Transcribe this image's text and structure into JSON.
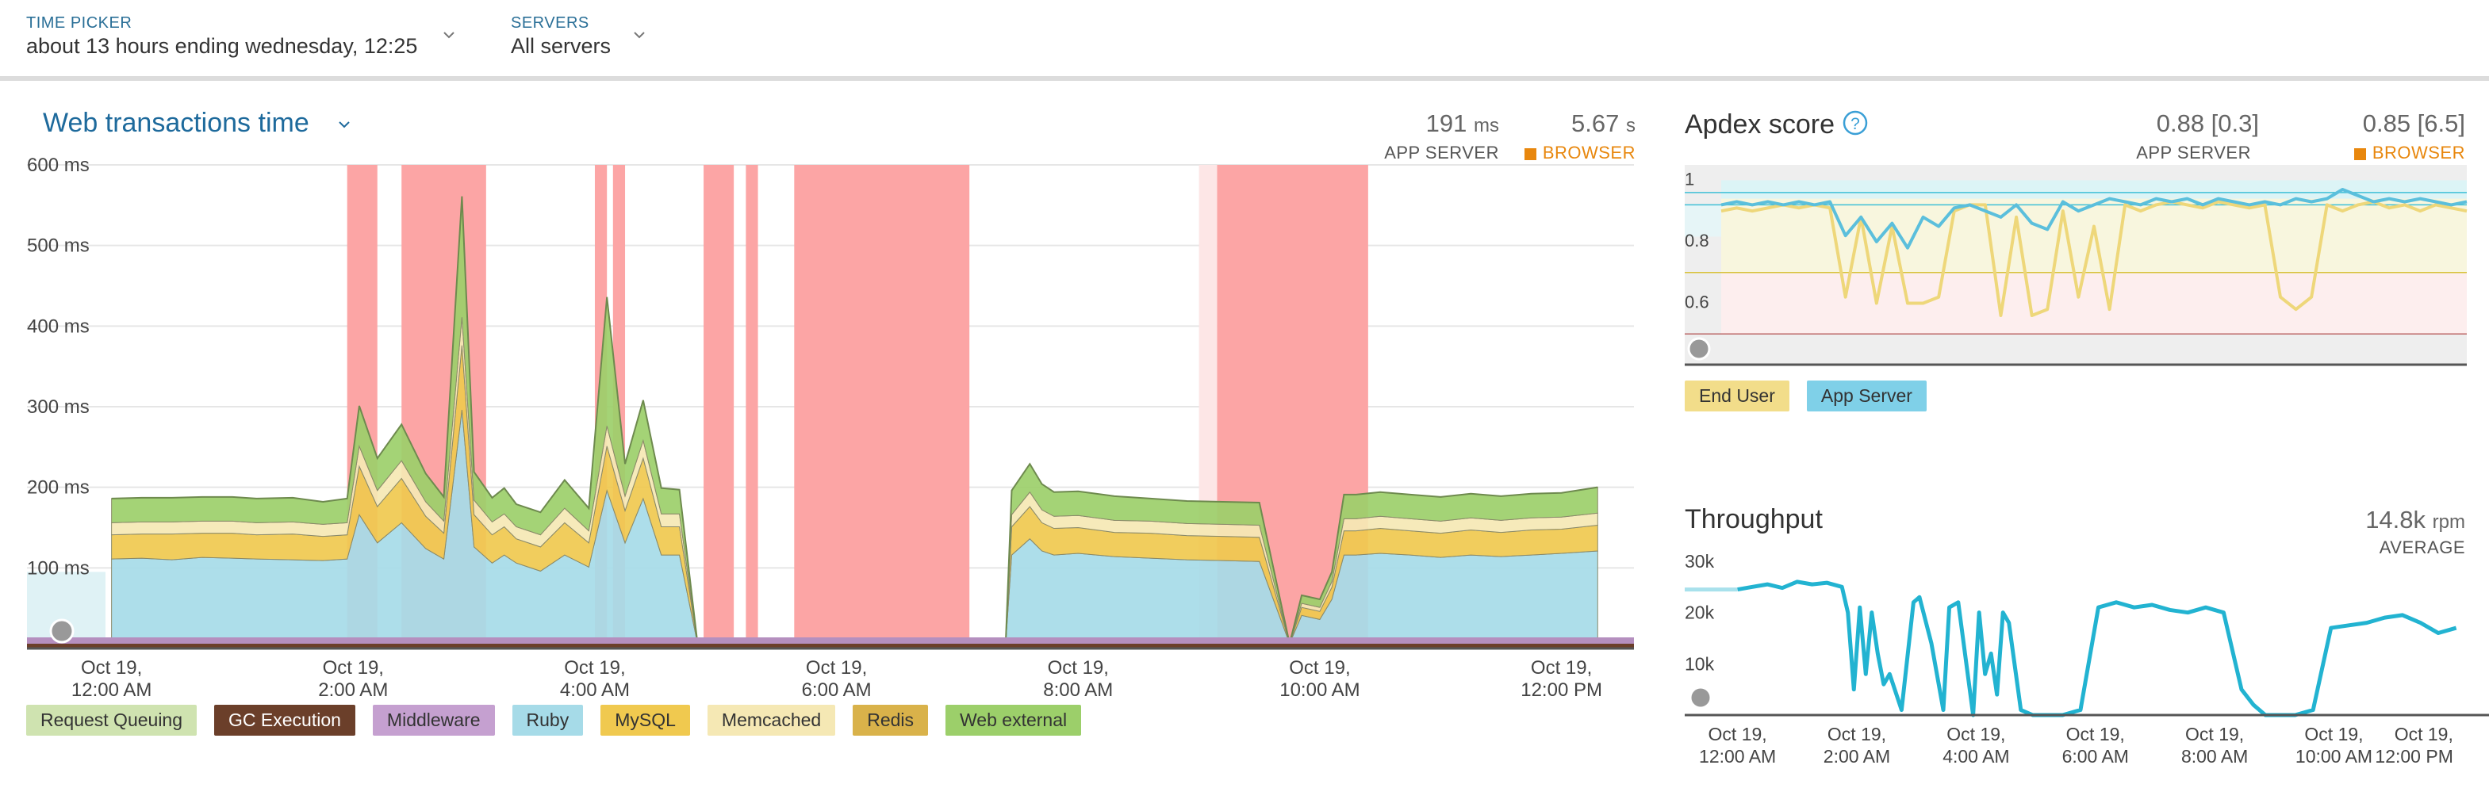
{
  "time_picker": {
    "label": "TIME PICKER",
    "value": "about 13 hours ending wednesday, 12:25"
  },
  "servers": {
    "label": "SERVERS",
    "value": "All servers"
  },
  "web_transactions": {
    "title": "Web transactions time",
    "app_server_value": "191",
    "app_server_unit": "ms",
    "app_server_label": "APP SERVER",
    "browser_value": "5.67",
    "browser_unit": "s",
    "browser_label": "BROWSER",
    "legend": [
      {
        "label": "Request Queuing",
        "color": "#cfe3b0"
      },
      {
        "label": "GC Execution",
        "color": "#6b3f2a"
      },
      {
        "label": "Middleware",
        "color": "#c5a0d0"
      },
      {
        "label": "Ruby",
        "color": "#a6dbe8"
      },
      {
        "label": "MySQL",
        "color": "#f0c94f"
      },
      {
        "label": "Memcached",
        "color": "#f5e8b4"
      },
      {
        "label": "Redis",
        "color": "#d9b24a"
      },
      {
        "label": "Web external",
        "color": "#9ccf6a"
      }
    ]
  },
  "apdex": {
    "title": "Apdex score",
    "help_icon": "question-circle-icon",
    "app_server_value": "0.88 [0.3]",
    "app_server_label": "APP SERVER",
    "browser_value": "0.85 [6.5]",
    "browser_label": "BROWSER",
    "legend": [
      {
        "label": "End User",
        "color": "#f2dd8a"
      },
      {
        "label": "App Server",
        "color": "#7fd0e8"
      }
    ]
  },
  "throughput": {
    "title": "Throughput",
    "value": "14.8k",
    "unit": "rpm",
    "label": "AVERAGE"
  },
  "colors": {
    "accent": "#1e6a9c",
    "browser": "#e8870d",
    "incident": "#fca5a5",
    "line": "#22b3d1"
  },
  "chart_data": [
    {
      "type": "area",
      "title": "Web transactions time",
      "ylabel": "",
      "yticks": [
        "600 ms",
        "500 ms",
        "400 ms",
        "300 ms",
        "200 ms",
        "100 ms"
      ],
      "ylim": [
        0,
        600
      ],
      "x": [
        0,
        0.25,
        0.5,
        0.75,
        1,
        1.2,
        1.5,
        1.75,
        1.95,
        2.05,
        2.2,
        2.4,
        2.6,
        2.75,
        2.9,
        3.0,
        3.15,
        3.25,
        3.35,
        3.55,
        3.75,
        3.95,
        4.1,
        4.25,
        4.4,
        4.55,
        4.7,
        4.85,
        5.0,
        5.1,
        5.2,
        5.35,
        5.5,
        5.7,
        5.85,
        5.9,
        6.0,
        6.5,
        7.0,
        7.4,
        7.45,
        7.6,
        7.7,
        7.8,
        8.0,
        8.3,
        8.6,
        8.9,
        9.2,
        9.5,
        9.75,
        9.85,
        10.0,
        10.1,
        10.2,
        10.3,
        10.5,
        10.75,
        11.0,
        11.25,
        11.5,
        11.75,
        12.0,
        12.3
      ],
      "series": [
        {
          "name": "Ruby",
          "values": [
            105,
            106,
            104,
            107,
            106,
            105,
            104,
            103,
            105,
            160,
            125,
            150,
            118,
            105,
            290,
            120,
            100,
            110,
            100,
            90,
            110,
            95,
            190,
            125,
            180,
            110,
            110,
            0,
            0,
            0,
            0,
            0,
            0,
            0,
            0,
            0,
            0,
            0,
            0,
            0,
            110,
            130,
            115,
            110,
            112,
            108,
            106,
            104,
            103,
            102,
            0,
            35,
            30,
            55,
            110,
            110,
            112,
            110,
            107,
            110,
            108,
            110,
            112,
            115
          ]
        },
        {
          "name": "MySQL",
          "values": [
            30,
            30,
            32,
            30,
            31,
            30,
            32,
            30,
            30,
            60,
            45,
            55,
            40,
            32,
            80,
            40,
            35,
            35,
            30,
            30,
            40,
            30,
            55,
            40,
            50,
            35,
            35,
            0,
            0,
            0,
            0,
            0,
            0,
            0,
            0,
            0,
            0,
            0,
            0,
            0,
            35,
            40,
            35,
            33,
            32,
            30,
            31,
            30,
            30,
            30,
            0,
            10,
            10,
            15,
            30,
            30,
            31,
            30,
            30,
            31,
            30,
            31,
            30,
            32
          ]
        },
        {
          "name": "Memcached",
          "values": [
            15,
            15,
            15,
            15,
            15,
            15,
            15,
            15,
            15,
            25,
            20,
            22,
            18,
            15,
            35,
            18,
            16,
            16,
            15,
            15,
            18,
            15,
            25,
            18,
            22,
            16,
            16,
            0,
            0,
            0,
            0,
            0,
            0,
            0,
            0,
            0,
            0,
            0,
            0,
            0,
            15,
            18,
            16,
            15,
            15,
            15,
            15,
            15,
            15,
            15,
            0,
            5,
            5,
            7,
            15,
            15,
            15,
            15,
            15,
            15,
            15,
            15,
            15,
            15
          ]
        },
        {
          "name": "Web external",
          "values": [
            30,
            30,
            30,
            30,
            30,
            30,
            30,
            28,
            30,
            50,
            40,
            45,
            35,
            30,
            150,
            35,
            30,
            32,
            28,
            28,
            35,
            28,
            160,
            40,
            50,
            32,
            30,
            0,
            0,
            0,
            0,
            0,
            0,
            0,
            0,
            0,
            0,
            0,
            0,
            0,
            30,
            35,
            32,
            30,
            30,
            30,
            28,
            28,
            28,
            28,
            0,
            10,
            10,
            12,
            30,
            30,
            30,
            30,
            30,
            30,
            30,
            30,
            30,
            32
          ]
        }
      ],
      "xticks": [
        "Oct 19,\n12:00 AM",
        "Oct 19,\n2:00 AM",
        "Oct 19,\n4:00 AM",
        "Oct 19,\n6:00 AM",
        "Oct 19,\n8:00 AM",
        "Oct 19,\n10:00 AM",
        "Oct 19,\n12:00 PM"
      ],
      "xtick_hours": [
        0,
        2,
        4,
        6,
        8,
        10,
        12
      ],
      "xlim": [
        -0.7,
        12.6
      ],
      "incidents": [
        [
          1.95,
          2.2
        ],
        [
          2.4,
          3.1
        ],
        [
          4.0,
          4.1
        ],
        [
          4.15,
          4.25
        ],
        [
          4.9,
          5.15
        ],
        [
          5.25,
          5.35
        ],
        [
          5.65,
          7.1
        ],
        [
          9.0,
          9.15
        ],
        [
          9.15,
          10.4
        ]
      ]
    },
    {
      "type": "line",
      "title": "Apdex score",
      "yticks": [
        "1",
        "0.8",
        "0.6"
      ],
      "ylim": [
        0.4,
        1.05
      ],
      "series": [
        {
          "name": "End User",
          "values": [
            0.9,
            0.91,
            0.9,
            0.91,
            0.92,
            0.91,
            0.92,
            0.91,
            0.62,
            0.88,
            0.6,
            0.85,
            0.6,
            0.6,
            0.62,
            0.9,
            0.92,
            0.92,
            0.56,
            0.88,
            0.56,
            0.58,
            0.9,
            0.62,
            0.85,
            0.58,
            0.92,
            0.9,
            0.92,
            0.93,
            0.92,
            0.91,
            0.93,
            0.92,
            0.91,
            0.92,
            0.62,
            0.58,
            0.62,
            0.92,
            0.9,
            0.92,
            0.93,
            0.91,
            0.92,
            0.9,
            0.92,
            0.91,
            0.9
          ]
        },
        {
          "name": "App Server",
          "values": [
            0.92,
            0.93,
            0.92,
            0.93,
            0.92,
            0.93,
            0.92,
            0.93,
            0.82,
            0.88,
            0.8,
            0.86,
            0.78,
            0.88,
            0.85,
            0.91,
            0.92,
            0.9,
            0.88,
            0.92,
            0.86,
            0.84,
            0.93,
            0.9,
            0.92,
            0.94,
            0.93,
            0.92,
            0.94,
            0.93,
            0.94,
            0.92,
            0.94,
            0.93,
            0.92,
            0.93,
            0.92,
            0.94,
            0.93,
            0.94,
            0.97,
            0.95,
            0.93,
            0.94,
            0.93,
            0.94,
            0.93,
            0.92,
            0.93
          ]
        }
      ],
      "bands": [
        {
          "from": 0.94,
          "to": 1.0,
          "color": "#dcf4f6"
        },
        {
          "from": 0.7,
          "to": 0.94,
          "color": "#f8f6de"
        },
        {
          "from": 0.5,
          "to": 0.7,
          "color": "#fdeeee"
        }
      ]
    },
    {
      "type": "line",
      "title": "Throughput",
      "yticks": [
        "30k",
        "20k",
        "10k"
      ],
      "ylim": [
        0,
        30000
      ],
      "x": [
        0,
        0.25,
        0.5,
        0.75,
        1,
        1.25,
        1.5,
        1.75,
        1.85,
        1.95,
        2.05,
        2.15,
        2.25,
        2.35,
        2.45,
        2.55,
        2.75,
        2.95,
        3.05,
        3.25,
        3.45,
        3.55,
        3.7,
        3.95,
        4.05,
        4.15,
        4.25,
        4.35,
        4.45,
        4.55,
        4.75,
        4.95,
        5.15,
        5.45,
        5.75,
        6.05,
        6.35,
        6.65,
        6.95,
        7.25,
        7.55,
        7.85,
        8.15,
        8.45,
        8.65,
        8.85,
        9.05,
        9.35,
        9.65,
        9.95,
        10.25,
        10.55,
        10.85,
        11.15,
        11.45,
        11.75,
        12.05
      ],
      "series": [
        {
          "name": "Throughput",
          "values": [
            24500,
            25000,
            25500,
            24800,
            26000,
            25500,
            25800,
            25000,
            20000,
            5000,
            21000,
            8000,
            20000,
            12000,
            6000,
            8000,
            1000,
            22000,
            23000,
            14000,
            1000,
            21000,
            22000,
            0,
            20000,
            8000,
            12000,
            4000,
            20000,
            18000,
            1000,
            0,
            0,
            0,
            1000,
            21000,
            22000,
            21000,
            21500,
            20500,
            20000,
            21000,
            20000,
            5000,
            2000,
            0,
            0,
            0,
            1000,
            17000,
            17500,
            18000,
            19000,
            19500,
            18000,
            16000,
            17000
          ]
        }
      ],
      "xticks": [
        "Oct 19,\n12:00 AM",
        "Oct 19,\n2:00 AM",
        "Oct 19,\n4:00 AM",
        "Oct 19,\n6:00 AM",
        "Oct 19,\n8:00 AM",
        "Oct 19,\n10:00 AM",
        "Oct 19,\n12:00 PM"
      ],
      "xtick_hours": [
        0,
        2,
        4,
        6,
        8,
        10,
        12
      ],
      "xlim": [
        -0.7,
        12.6
      ]
    }
  ]
}
